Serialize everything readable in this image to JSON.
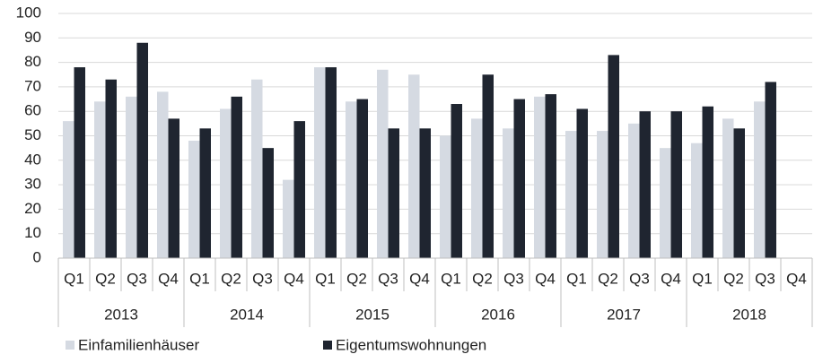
{
  "chart_data": {
    "type": "bar",
    "categories": [
      "Q1",
      "Q2",
      "Q3",
      "Q4",
      "Q1",
      "Q2",
      "Q3",
      "Q4",
      "Q1",
      "Q2",
      "Q3",
      "Q4",
      "Q1",
      "Q2",
      "Q3",
      "Q4",
      "Q1",
      "Q2",
      "Q3",
      "Q4",
      "Q1",
      "Q2",
      "Q3",
      "Q4"
    ],
    "groups": [
      "2013",
      "2014",
      "2015",
      "2016",
      "2017",
      "2018"
    ],
    "series": [
      {
        "name": "Einfamilienhäuser",
        "color": "#d5dae2",
        "values": [
          56,
          64,
          66,
          68,
          48,
          61,
          73,
          32,
          78,
          64,
          77,
          75,
          50,
          57,
          53,
          66,
          52,
          52,
          55,
          45,
          47,
          57,
          64,
          null
        ]
      },
      {
        "name": "Eigentumswohnungen",
        "color": "#1f2530",
        "values": [
          78,
          73,
          88,
          57,
          53,
          66,
          45,
          56,
          78,
          65,
          53,
          53,
          63,
          75,
          65,
          67,
          61,
          83,
          60,
          60,
          62,
          53,
          72,
          null
        ]
      }
    ],
    "ylim": [
      0,
      100
    ],
    "yticks": [
      0,
      10,
      20,
      30,
      40,
      50,
      60,
      70,
      80,
      90,
      100
    ],
    "grid": true,
    "legend": "bottom"
  }
}
